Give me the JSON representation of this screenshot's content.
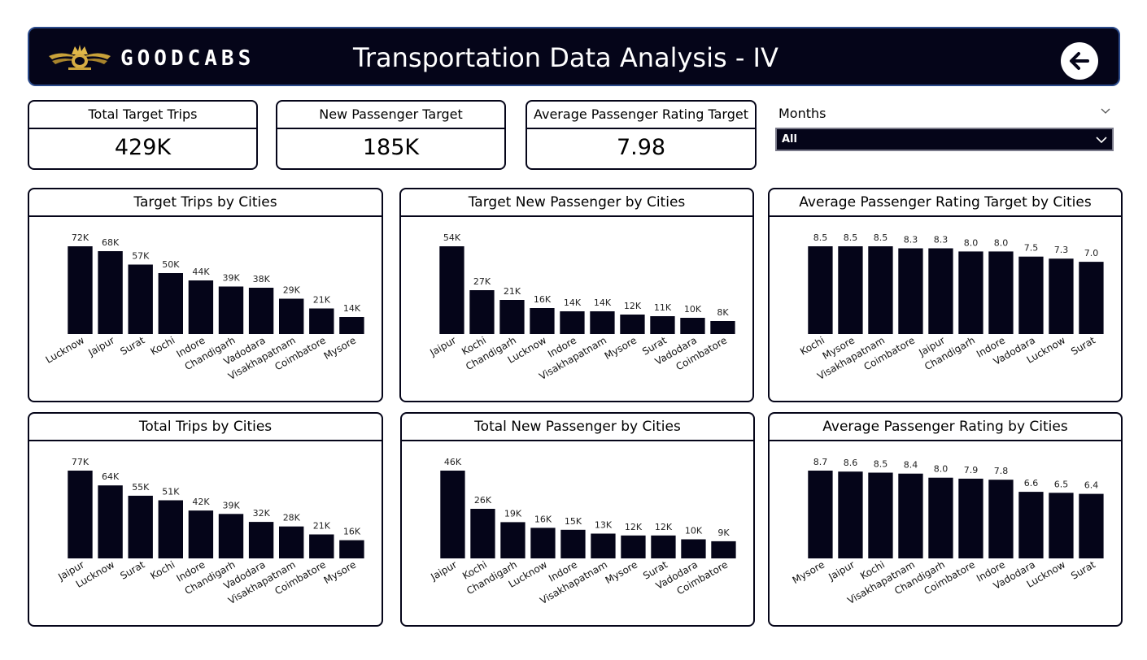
{
  "header": {
    "brand": "GOODCABS",
    "title": "Transportation Data Analysis - IV"
  },
  "kpis": [
    {
      "label": "Total Target Trips",
      "value": "429K"
    },
    {
      "label": "New Passenger Target",
      "value": "185K"
    },
    {
      "label": "Average Passenger Rating Target",
      "value": "7.98"
    }
  ],
  "slicer": {
    "label": "Months",
    "value": "All"
  },
  "chart_data": [
    {
      "type": "bar",
      "title": "Target Trips by Cities",
      "categories": [
        "Lucknow",
        "Jaipur",
        "Surat",
        "Kochi",
        "Indore",
        "Chandigarh",
        "Vadodara",
        "Visakhapatnam",
        "Coimbatore",
        "Mysore"
      ],
      "values": [
        72000,
        68000,
        57000,
        50000,
        44000,
        39000,
        38000,
        29000,
        21000,
        14000
      ],
      "labels": [
        "72K",
        "68K",
        "57K",
        "50K",
        "44K",
        "39K",
        "38K",
        "29K",
        "21K",
        "14K"
      ],
      "ylim": [
        0,
        72000
      ]
    },
    {
      "type": "bar",
      "title": "Target New Passenger by Cities",
      "categories": [
        "Jaipur",
        "Kochi",
        "Chandigarh",
        "Lucknow",
        "Indore",
        "Visakhapatnam",
        "Mysore",
        "Surat",
        "Vadodara",
        "Coimbatore"
      ],
      "values": [
        54000,
        27000,
        21000,
        16000,
        14000,
        14000,
        12000,
        11000,
        10000,
        8000
      ],
      "labels": [
        "54K",
        "27K",
        "21K",
        "16K",
        "14K",
        "14K",
        "12K",
        "11K",
        "10K",
        "8K"
      ],
      "ylim": [
        0,
        54000
      ]
    },
    {
      "type": "bar",
      "title": "Average Passenger Rating Target by Cities",
      "categories": [
        "Kochi",
        "Mysore",
        "Visakhapatnam",
        "Coimbatore",
        "Jaipur",
        "Chandigarh",
        "Indore",
        "Vadodara",
        "Lucknow",
        "Surat"
      ],
      "values": [
        8.5,
        8.5,
        8.5,
        8.3,
        8.3,
        8.0,
        8.0,
        7.5,
        7.3,
        7.0
      ],
      "labels": [
        "8.5",
        "8.5",
        "8.5",
        "8.3",
        "8.3",
        "8.0",
        "8.0",
        "7.5",
        "7.3",
        "7.0"
      ],
      "ylim": [
        0,
        8.5
      ]
    },
    {
      "type": "bar",
      "title": "Total Trips by Cities",
      "categories": [
        "Jaipur",
        "Lucknow",
        "Surat",
        "Kochi",
        "Indore",
        "Chandigarh",
        "Vadodara",
        "Visakhapatnam",
        "Coimbatore",
        "Mysore"
      ],
      "values": [
        77000,
        64000,
        55000,
        51000,
        42000,
        39000,
        32000,
        28000,
        21000,
        16000
      ],
      "labels": [
        "77K",
        "64K",
        "55K",
        "51K",
        "42K",
        "39K",
        "32K",
        "28K",
        "21K",
        "16K"
      ],
      "ylim": [
        0,
        77000
      ]
    },
    {
      "type": "bar",
      "title": "Total New Passenger by Cities",
      "categories": [
        "Jaipur",
        "Kochi",
        "Chandigarh",
        "Lucknow",
        "Indore",
        "Visakhapatnam",
        "Mysore",
        "Surat",
        "Vadodara",
        "Coimbatore"
      ],
      "values": [
        46000,
        26000,
        19000,
        16000,
        15000,
        13000,
        12000,
        12000,
        10000,
        9000
      ],
      "labels": [
        "46K",
        "26K",
        "19K",
        "16K",
        "15K",
        "13K",
        "12K",
        "12K",
        "10K",
        "9K"
      ],
      "ylim": [
        0,
        46000
      ]
    },
    {
      "type": "bar",
      "title": "Average Passenger Rating by Cities",
      "categories": [
        "Mysore",
        "Jaipur",
        "Kochi",
        "Visakhapatnam",
        "Chandigarh",
        "Coimbatore",
        "Indore",
        "Vadodara",
        "Lucknow",
        "Surat"
      ],
      "values": [
        8.7,
        8.6,
        8.5,
        8.4,
        8.0,
        7.9,
        7.8,
        6.6,
        6.5,
        6.4
      ],
      "labels": [
        "8.7",
        "8.6",
        "8.5",
        "8.4",
        "8.0",
        "7.9",
        "7.8",
        "6.6",
        "6.5",
        "6.4"
      ],
      "ylim": [
        0,
        8.7
      ]
    }
  ],
  "colors": {
    "bar": "#050519",
    "header_bg": "#050519",
    "accent": "#2b4a8a"
  }
}
